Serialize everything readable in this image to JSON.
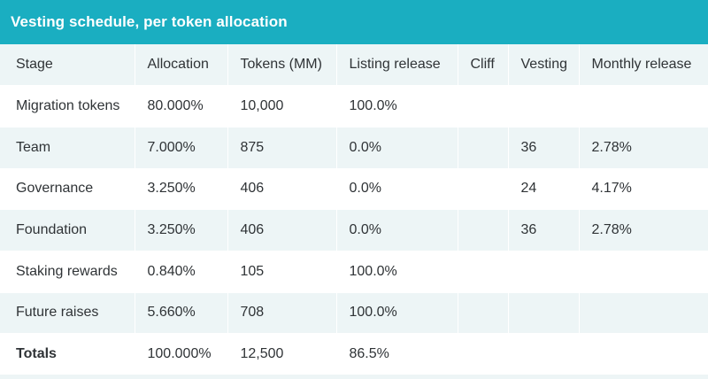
{
  "title": "Vesting schedule, per token allocation",
  "columns": [
    "Stage",
    "Allocation",
    "Tokens (MM)",
    "Listing release",
    "Cliff",
    "Vesting",
    "Monthly release"
  ],
  "rows": [
    {
      "stage": "Migration tokens",
      "allocation": "80.000%",
      "tokens": "10,000",
      "listing": "100.0%",
      "cliff": "",
      "vesting": "",
      "monthly": ""
    },
    {
      "stage": "Team",
      "allocation": "7.000%",
      "tokens": "875",
      "listing": "0.0%",
      "cliff": "",
      "vesting": "36",
      "monthly": "2.78%"
    },
    {
      "stage": "Governance",
      "allocation": "3.250%",
      "tokens": "406",
      "listing": "0.0%",
      "cliff": "",
      "vesting": "24",
      "monthly": "4.17%"
    },
    {
      "stage": "Foundation",
      "allocation": "3.250%",
      "tokens": "406",
      "listing": "0.0%",
      "cliff": "",
      "vesting": "36",
      "monthly": "2.78%"
    },
    {
      "stage": "Staking rewards",
      "allocation": "0.840%",
      "tokens": "105",
      "listing": "100.0%",
      "cliff": "",
      "vesting": "",
      "monthly": ""
    },
    {
      "stage": "Future raises",
      "allocation": "5.660%",
      "tokens": "708",
      "listing": "100.0%",
      "cliff": "",
      "vesting": "",
      "monthly": ""
    }
  ],
  "totals": {
    "stage": "Totals",
    "allocation": "100.000%",
    "tokens": "12,500",
    "listing": "86.5%",
    "cliff": "",
    "vesting": "",
    "monthly": ""
  },
  "colors": {
    "header_bar": "#1aaec1",
    "row_shade": "#edf5f6",
    "text": "#2f3336"
  }
}
